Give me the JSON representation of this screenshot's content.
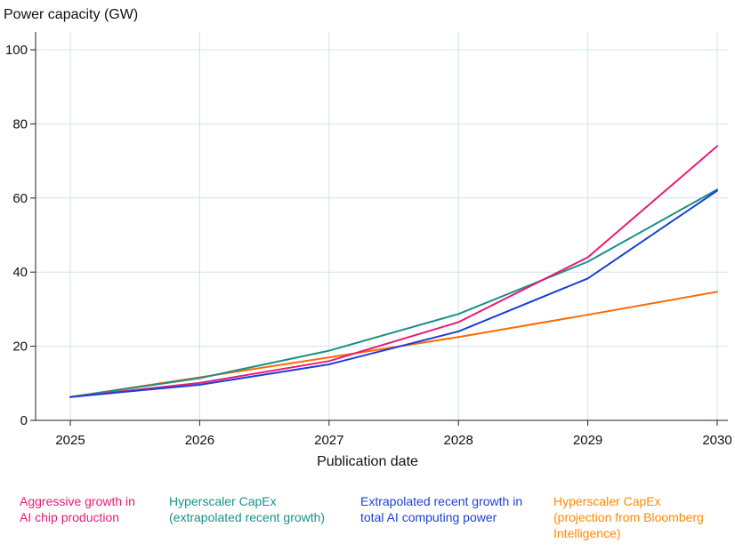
{
  "chart_data": {
    "type": "line",
    "title": "",
    "ylabel": "Power capacity (GW)",
    "xlabel": "Publication date",
    "x": [
      2025,
      2026,
      2027,
      2028,
      2029,
      2030
    ],
    "xlim": [
      2025,
      2030
    ],
    "ylim": [
      0,
      100
    ],
    "xticks": [
      "2025",
      "2026",
      "2027",
      "2028",
      "2029",
      "2030"
    ],
    "yticks": [
      "0",
      "20",
      "40",
      "60",
      "80",
      "100"
    ],
    "grid": true,
    "legend_position": "bottom",
    "series": [
      {
        "name": "Hyperscaler CapEx (projection from Bloomberg Intelligence)",
        "color": "#ff6a00",
        "values": [
          6.3,
          11.6,
          17.0,
          22.5,
          28.5,
          34.7
        ]
      },
      {
        "name": "Hyperscaler CapEx (extrapolated recent growth)",
        "color": "#1a9088",
        "values": [
          6.3,
          11.4,
          18.8,
          28.7,
          42.8,
          62.3
        ]
      },
      {
        "name": "Aggressive growth in AI chip production",
        "color": "#e81b78",
        "values": [
          6.3,
          10.1,
          16.0,
          26.5,
          44.0,
          74.0
        ]
      },
      {
        "name": "Extrapolated recent growth in total AI computing power",
        "color": "#1e3fd6",
        "values": [
          6.3,
          9.6,
          15.1,
          24.0,
          38.3,
          62.0
        ]
      }
    ]
  },
  "legend": {
    "aggressive": "Aggressive growth in\nAI chip production",
    "capex_extrapolated": "Hyperscaler CapEx\n(extrapolated recent growth)",
    "extrapolated_compute": "Extrapolated recent growth in\ntotal AI computing power",
    "capex_bloomberg": "Hyperscaler CapEx\n(projection from Bloomberg\nIntelligence)"
  },
  "colors": {
    "aggressive": "#e81b78",
    "capex_extrapolated": "#1a9088",
    "extrapolated_compute": "#1e3fd6",
    "capex_bloomberg": "#ff6a00",
    "grid": "#cfe4ea",
    "axis": "#222222"
  }
}
